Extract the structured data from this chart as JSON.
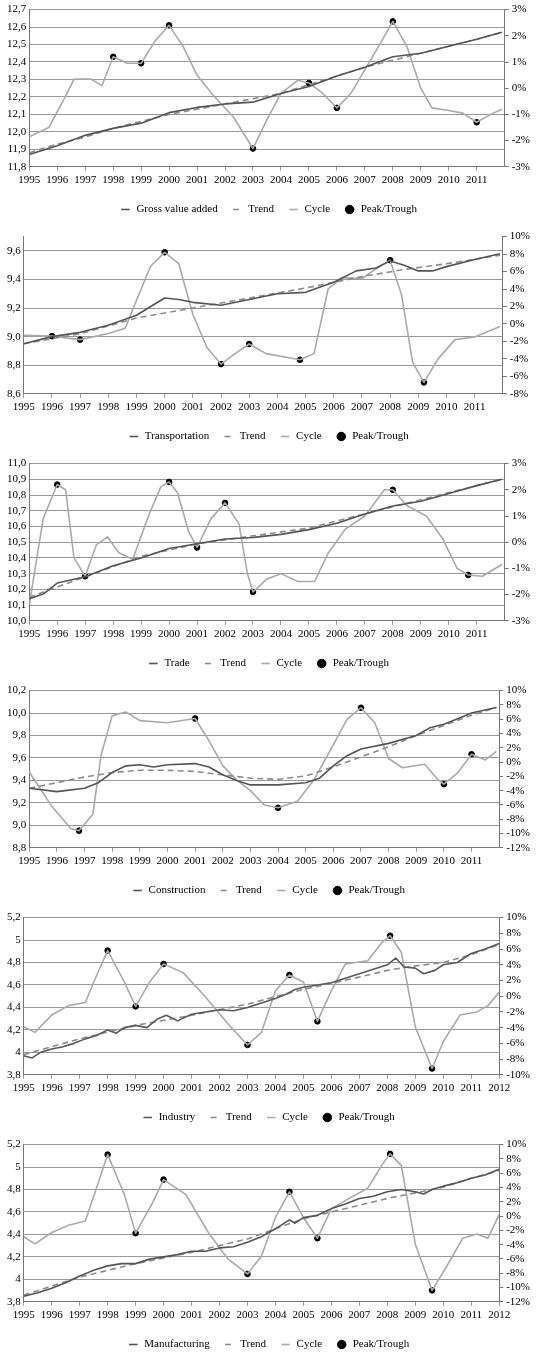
{
  "chart_data": [
    {
      "type": "line",
      "xlim": [
        1995,
        2012
      ],
      "xticks": [
        1995,
        1996,
        1997,
        1998,
        1999,
        2000,
        2001,
        2002,
        2003,
        2004,
        2005,
        2006,
        2007,
        2008,
        2009,
        2010,
        2011
      ],
      "ylim": [
        11.8,
        12.7
      ],
      "yticks": [
        {
          "value": 11.8,
          "label": "11,8"
        },
        {
          "value": 11.9,
          "label": "11,9"
        },
        {
          "value": 12.0,
          "label": "12,0"
        },
        {
          "value": 12.1,
          "label": "12,1"
        },
        {
          "value": 12.2,
          "label": "12,2"
        },
        {
          "value": 12.3,
          "label": "12,3"
        },
        {
          "value": 12.4,
          "label": "12,4"
        },
        {
          "value": 12.5,
          "label": "12,5"
        },
        {
          "value": 12.6,
          "label": "12,6"
        },
        {
          "value": 12.7,
          "label": "12,7"
        }
      ],
      "y2lim": [
        -3,
        3
      ],
      "y2ticks": [
        {
          "value": -3,
          "label": "-3%"
        },
        {
          "value": -2,
          "label": "-2%"
        },
        {
          "value": -1,
          "label": "-1%"
        },
        {
          "value": 0,
          "label": "0%"
        },
        {
          "value": 1,
          "label": "1%"
        },
        {
          "value": 2,
          "label": "2%"
        },
        {
          "value": 3,
          "label": "3%"
        }
      ],
      "grid": "y",
      "legend": "bottom",
      "series": [
        {
          "name": "Gross value added",
          "type": "line",
          "color": "#555555",
          "x": [
            1995,
            1996,
            1997,
            1998,
            1999,
            2000,
            2001,
            2002,
            2003,
            2004,
            2005,
            2006,
            2007,
            2008,
            2009,
            2010,
            2011,
            2011.9
          ],
          "values": [
            11.87,
            11.92,
            11.98,
            12.02,
            12.05,
            12.11,
            12.14,
            12.16,
            12.17,
            12.22,
            12.26,
            12.32,
            12.37,
            12.43,
            12.45,
            12.49,
            12.53,
            12.57
          ]
        },
        {
          "name": "Trend",
          "type": "line",
          "line_style": "dashed",
          "color": "#8c8c8c",
          "x": [
            1995,
            1996,
            1997,
            1998,
            1999,
            2000,
            2001,
            2002,
            2003,
            2004,
            2005,
            2006,
            2007,
            2008,
            2009,
            2010,
            2011,
            2011.9
          ],
          "values": [
            11.88,
            11.93,
            11.97,
            12.02,
            12.06,
            12.1,
            12.13,
            12.16,
            12.19,
            12.22,
            12.27,
            12.32,
            12.37,
            12.41,
            12.45,
            12.49,
            12.53,
            12.57
          ]
        },
        {
          "name": "Cycle",
          "type": "line",
          "axis": "y2",
          "color": "#aaaaaa",
          "x": [
            1995,
            1995.7,
            1996.3,
            1996.6,
            1997.2,
            1997.6,
            1998,
            1998.5,
            1999,
            1999.5,
            2000,
            2000.5,
            2001,
            2001.6,
            2002.3,
            2003,
            2003.5,
            2004,
            2004.6,
            2005,
            2005.5,
            2006,
            2006.5,
            2007,
            2007.6,
            2008,
            2008.5,
            2009,
            2009.4,
            2010,
            2010.5,
            2011,
            2011.5,
            2011.9
          ],
          "values": [
            -1.85,
            -1.5,
            -0.3,
            0.35,
            0.35,
            0.1,
            1.2,
            0.95,
            0.95,
            1.8,
            2.4,
            1.6,
            0.5,
            -0.3,
            -1.1,
            -2.3,
            -1.2,
            -0.2,
            0.3,
            0.2,
            -0.2,
            -0.75,
            -0.2,
            0.7,
            1.8,
            2.55,
            1.6,
            0.0,
            -0.75,
            -0.85,
            -0.95,
            -1.3,
            -1.0,
            -0.8
          ]
        },
        {
          "name": "Peak/Trough",
          "type": "scatter",
          "axis": "y2",
          "marker": "circle",
          "color": "#000000",
          "x": [
            1998,
            1999,
            2000,
            2003,
            2005,
            2006,
            2008,
            2011
          ],
          "values": [
            1.2,
            0.95,
            2.4,
            -2.3,
            0.2,
            -0.75,
            2.55,
            -1.3
          ]
        }
      ]
    },
    {
      "type": "line",
      "xlim": [
        1995,
        2012
      ],
      "xticks": [
        1995,
        1996,
        1997,
        1998,
        1999,
        2000,
        2001,
        2002,
        2003,
        2004,
        2005,
        2006,
        2007,
        2008,
        2009,
        2010,
        2011
      ],
      "ylim": [
        8.6,
        9.7
      ],
      "yticks": [
        {
          "value": 8.6,
          "label": "8,6"
        },
        {
          "value": 8.8,
          "label": "8,8"
        },
        {
          "value": 9.0,
          "label": "9,0"
        },
        {
          "value": 9.2,
          "label": "9,2"
        },
        {
          "value": 9.4,
          "label": "9,4"
        },
        {
          "value": 9.6,
          "label": "9,6"
        }
      ],
      "y2lim": [
        -8,
        10
      ],
      "y2ticks": [
        {
          "value": -8,
          "label": "-8%"
        },
        {
          "value": -6,
          "label": "-6%"
        },
        {
          "value": -4,
          "label": "-4%"
        },
        {
          "value": -2,
          "label": "-2%"
        },
        {
          "value": 0,
          "label": "0%"
        },
        {
          "value": 2,
          "label": "2%"
        },
        {
          "value": 4,
          "label": "4%"
        },
        {
          "value": 6,
          "label": "6%"
        },
        {
          "value": 8,
          "label": "8%"
        },
        {
          "value": 10,
          "label": "10%"
        }
      ],
      "grid": "y",
      "legend": "bottom",
      "series": [
        {
          "name": "Transportation",
          "type": "line",
          "color": "#555555",
          "x": [
            1995,
            1996,
            1997,
            1998,
            1999,
            2000,
            2000.5,
            2001,
            2002,
            2003,
            2004,
            2005,
            2006,
            2006.8,
            2007.5,
            2008,
            2008.5,
            2009,
            2009.5,
            2010,
            2011,
            2011.9
          ],
          "values": [
            8.95,
            9.0,
            9.03,
            9.08,
            9.15,
            9.27,
            9.26,
            9.24,
            9.22,
            9.26,
            9.3,
            9.31,
            9.38,
            9.46,
            9.48,
            9.53,
            9.5,
            9.46,
            9.46,
            9.49,
            9.54,
            9.58
          ]
        },
        {
          "name": "Trend",
          "type": "line",
          "line_style": "dashed",
          "color": "#8c8c8c",
          "x": [
            1995,
            1997,
            1999,
            2001,
            2003,
            2005,
            2007,
            2008.5,
            2010,
            2011.9
          ],
          "values": [
            8.95,
            9.02,
            9.13,
            9.2,
            9.27,
            9.34,
            9.42,
            9.47,
            9.51,
            9.57
          ]
        },
        {
          "name": "Cycle",
          "type": "line",
          "axis": "y2",
          "color": "#aaaaaa",
          "x": [
            1995,
            1996,
            1997,
            1998,
            1998.6,
            1999,
            1999.5,
            2000,
            2000.5,
            2001,
            2001.5,
            2002,
            2002.5,
            2003,
            2003.6,
            2004.8,
            2005.3,
            2005.8,
            2006.3,
            2007,
            2007.5,
            2008,
            2008.4,
            2008.8,
            2009.2,
            2009.7,
            2010.3,
            2011,
            2011.9
          ],
          "values": [
            -1.3,
            -1.4,
            -1.8,
            -1.1,
            -0.5,
            2.7,
            6.6,
            8.2,
            6.9,
            1.1,
            -2.7,
            -4.6,
            -3.4,
            -2.3,
            -3.4,
            -4.1,
            -3.4,
            4.0,
            5.3,
            5.2,
            6.3,
            7.3,
            3.4,
            -4.4,
            -6.7,
            -4.0,
            -1.8,
            -1.5,
            -0.3
          ]
        },
        {
          "name": "Peak/Trough",
          "type": "scatter",
          "axis": "y2",
          "marker": "circle",
          "color": "#000000",
          "x": [
            1996,
            1997,
            2000,
            2002,
            2003,
            2004.8,
            2008,
            2009.2
          ],
          "values": [
            -1.4,
            -1.8,
            8.2,
            -4.6,
            -2.3,
            -4.1,
            7.3,
            -6.7
          ]
        }
      ]
    },
    {
      "type": "line",
      "xlim": [
        1995,
        2012
      ],
      "xticks": [
        1995,
        1996,
        1997,
        1998,
        1999,
        2000,
        2001,
        2002,
        2003,
        2004,
        2005,
        2006,
        2007,
        2008,
        2009,
        2010,
        2011
      ],
      "ylim": [
        10.0,
        11.0
      ],
      "yticks": [
        {
          "value": 10.0,
          "label": "10,0"
        },
        {
          "value": 10.1,
          "label": "10,1"
        },
        {
          "value": 10.2,
          "label": "10,2"
        },
        {
          "value": 10.3,
          "label": "10,3"
        },
        {
          "value": 10.4,
          "label": "10,4"
        },
        {
          "value": 10.5,
          "label": "10,5"
        },
        {
          "value": 10.6,
          "label": "10,6"
        },
        {
          "value": 10.7,
          "label": "10,7"
        },
        {
          "value": 10.8,
          "label": "10,8"
        },
        {
          "value": 10.9,
          "label": "10,9"
        },
        {
          "value": 11.0,
          "label": "11,0"
        }
      ],
      "y2lim": [
        -3,
        3
      ],
      "y2ticks": [
        {
          "value": -3,
          "label": "-3%"
        },
        {
          "value": -2,
          "label": "-2%"
        },
        {
          "value": -1,
          "label": "-1%"
        },
        {
          "value": 0,
          "label": "0%"
        },
        {
          "value": 1,
          "label": "1%"
        },
        {
          "value": 2,
          "label": "2%"
        },
        {
          "value": 3,
          "label": "3%"
        }
      ],
      "grid": "y",
      "legend": "bottom",
      "series": [
        {
          "name": "Trade",
          "type": "line",
          "color": "#555555",
          "x": [
            1995,
            1995.5,
            1996,
            1997,
            1998,
            1999,
            2000,
            2001,
            2002,
            2003,
            2004,
            2005,
            2006,
            2007,
            2008,
            2009,
            2010,
            2011,
            2011.9
          ],
          "values": [
            10.14,
            10.17,
            10.24,
            10.28,
            10.35,
            10.4,
            10.46,
            10.49,
            10.52,
            10.53,
            10.55,
            10.58,
            10.62,
            10.68,
            10.73,
            10.76,
            10.81,
            10.86,
            10.9
          ]
        },
        {
          "name": "Trend",
          "type": "line",
          "line_style": "dashed",
          "color": "#8c8c8c",
          "x": [
            1995,
            1997,
            1999,
            2001,
            2003,
            2005,
            2007,
            2009,
            2011,
            2011.9
          ],
          "values": [
            10.15,
            10.28,
            10.41,
            10.49,
            10.54,
            10.59,
            10.68,
            10.77,
            10.86,
            10.9
          ]
        },
        {
          "name": "Cycle",
          "type": "line",
          "axis": "y2",
          "color": "#aaaaaa",
          "x": [
            1995,
            1995.5,
            1996,
            1996.3,
            1996.6,
            1997,
            1997.4,
            1997.8,
            1998.2,
            1998.7,
            1999.3,
            1999.7,
            2000,
            2000.3,
            2000.7,
            2001,
            2001.5,
            2002,
            2002.5,
            2002.8,
            2003,
            2003.5,
            2004,
            2004.6,
            2005.2,
            2005.7,
            2006.3,
            2007,
            2007.7,
            2008,
            2008.5,
            2009.2,
            2009.8,
            2010.3,
            2010.7,
            2011.2,
            2011.9
          ],
          "values": [
            -2.4,
            0.9,
            2.2,
            2.0,
            -0.6,
            -1.3,
            -0.1,
            0.2,
            -0.4,
            -0.65,
            1.1,
            2.1,
            2.3,
            1.9,
            0.4,
            -0.2,
            0.9,
            1.5,
            0.7,
            -1.2,
            -1.9,
            -1.4,
            -1.2,
            -1.5,
            -1.5,
            -0.4,
            0.5,
            1.0,
            2.0,
            2.0,
            1.4,
            1.0,
            0.1,
            -1.0,
            -1.25,
            -1.3,
            -0.85
          ]
        },
        {
          "name": "Peak/Trough",
          "type": "scatter",
          "axis": "y2",
          "marker": "circle",
          "color": "#000000",
          "x": [
            1996,
            1997,
            2000,
            2001,
            2002,
            2003,
            2008,
            2010.7
          ],
          "values": [
            2.2,
            -1.3,
            2.3,
            -0.2,
            1.5,
            -1.9,
            2.0,
            -1.25
          ]
        }
      ]
    },
    {
      "type": "line",
      "xlim": [
        1995,
        2012
      ],
      "xticks": [
        1995,
        1996,
        1997,
        1998,
        1999,
        2000,
        2001,
        2002,
        2003,
        2004,
        2005,
        2006,
        2007,
        2008,
        2009,
        2010,
        2011
      ],
      "ylim": [
        8.8,
        10.2
      ],
      "yticks": [
        {
          "value": 8.8,
          "label": "8,8"
        },
        {
          "value": 9.0,
          "label": "9,0"
        },
        {
          "value": 9.2,
          "label": "9,2"
        },
        {
          "value": 9.4,
          "label": "9,4"
        },
        {
          "value": 9.6,
          "label": "9,6"
        },
        {
          "value": 9.8,
          "label": "9,8"
        },
        {
          "value": 10.0,
          "label": "10,0"
        },
        {
          "value": 10.2,
          "label": "10,2"
        }
      ],
      "y2lim": [
        -12,
        10
      ],
      "y2ticks": [
        {
          "value": -12,
          "label": "-12%"
        },
        {
          "value": -10,
          "label": "-10%"
        },
        {
          "value": -8,
          "label": "-8%"
        },
        {
          "value": -6,
          "label": "-6%"
        },
        {
          "value": -4,
          "label": "-4%"
        },
        {
          "value": -2,
          "label": "-2%"
        },
        {
          "value": 0,
          "label": "0%"
        },
        {
          "value": 2,
          "label": "2%"
        },
        {
          "value": 4,
          "label": "4%"
        },
        {
          "value": 6,
          "label": "6%"
        },
        {
          "value": 8,
          "label": "8%"
        },
        {
          "value": 10,
          "label": "10%"
        }
      ],
      "grid": "y",
      "legend": "bottom",
      "series": [
        {
          "name": "Construction",
          "type": "line",
          "color": "#555555",
          "x": [
            1995,
            1996,
            1997,
            1997.5,
            1998,
            1998.5,
            1999,
            1999.5,
            2000,
            2001,
            2001.5,
            2002,
            2002.5,
            2003,
            2004,
            2005,
            2005.5,
            2006,
            2006.5,
            2007,
            2008,
            2009,
            2009.5,
            2010,
            2010.5,
            2011,
            2011.9
          ],
          "values": [
            9.33,
            9.3,
            9.33,
            9.38,
            9.47,
            9.53,
            9.54,
            9.52,
            9.54,
            9.55,
            9.52,
            9.45,
            9.4,
            9.36,
            9.36,
            9.38,
            9.42,
            9.53,
            9.62,
            9.68,
            9.73,
            9.8,
            9.87,
            9.9,
            9.95,
            10.0,
            10.05
          ]
        },
        {
          "name": "Trend",
          "type": "line",
          "line_style": "dashed",
          "color": "#8c8c8c",
          "x": [
            1995,
            1996,
            1997,
            1998,
            1999,
            2000,
            2001,
            2002,
            2003,
            2004,
            2005,
            2006,
            2007,
            2008,
            2009,
            2010,
            2011,
            2011.9
          ],
          "values": [
            9.33,
            9.38,
            9.43,
            9.47,
            9.49,
            9.49,
            9.48,
            9.45,
            9.42,
            9.41,
            9.44,
            9.52,
            9.61,
            9.7,
            9.8,
            9.89,
            9.98,
            10.05
          ]
        },
        {
          "name": "Cycle",
          "type": "line",
          "axis": "y2",
          "color": "#aaaaaa",
          "x": [
            1995,
            1995.8,
            1996.5,
            1996.8,
            1997.3,
            1997.6,
            1998,
            1998.5,
            1999,
            2000,
            2001,
            2001.5,
            2002,
            2002.5,
            2003,
            2003.5,
            2004,
            2004.7,
            2005.3,
            2005.8,
            2006.5,
            2007,
            2007.5,
            2008,
            2008.5,
            2009.3,
            2009.8,
            2010,
            2010.5,
            2011,
            2011.5,
            2011.9
          ],
          "values": [
            -1.4,
            -6.1,
            -9.3,
            -9.6,
            -7.3,
            1.0,
            6.5,
            7.0,
            5.8,
            5.5,
            6.1,
            3.0,
            -0.5,
            -2.5,
            -4.0,
            -6.0,
            -6.4,
            -5.5,
            -2.5,
            1.0,
            6.0,
            7.6,
            5.5,
            0.5,
            -0.8,
            -0.3,
            -2.5,
            -3.1,
            -1.5,
            1.1,
            0.3,
            1.5
          ]
        },
        {
          "name": "Peak/Trough",
          "type": "scatter",
          "axis": "y2",
          "marker": "circle",
          "color": "#000000",
          "x": [
            1996.8,
            2001,
            2004,
            2007,
            2010,
            2011
          ],
          "values": [
            -9.6,
            6.1,
            -6.4,
            7.6,
            -3.1,
            1.1
          ]
        }
      ]
    },
    {
      "type": "line",
      "xlim": [
        1995,
        2012
      ],
      "xticks": [
        1995,
        1996,
        1997,
        1998,
        1999,
        2000,
        2001,
        2002,
        2003,
        2004,
        2005,
        2006,
        2007,
        2008,
        2009,
        2010,
        2011,
        2012
      ],
      "ylim": [
        3.8,
        5.2
      ],
      "yticks": [
        {
          "value": 3.8,
          "label": "3,8"
        },
        {
          "value": 4,
          "label": "4"
        },
        {
          "value": 4.2,
          "label": "4,2"
        },
        {
          "value": 4.4,
          "label": "4,4"
        },
        {
          "value": 4.6,
          "label": "4,6"
        },
        {
          "value": 4.8,
          "label": "4,8"
        },
        {
          "value": 5,
          "label": "5"
        },
        {
          "value": 5.2,
          "label": "5,2"
        }
      ],
      "y2lim": [
        -10,
        10
      ],
      "y2ticks": [
        {
          "value": -10,
          "label": "-10%"
        },
        {
          "value": -8,
          "label": "-8%"
        },
        {
          "value": -6,
          "label": "-6%"
        },
        {
          "value": -4,
          "label": "-4%"
        },
        {
          "value": -2,
          "label": "-2%"
        },
        {
          "value": 0,
          "label": "0%"
        },
        {
          "value": 2,
          "label": "2%"
        },
        {
          "value": 4,
          "label": "4%"
        },
        {
          "value": 6,
          "label": "6%"
        },
        {
          "value": 8,
          "label": "8%"
        },
        {
          "value": 10,
          "label": "10%"
        }
      ],
      "grid": "y",
      "legend": "bottom",
      "series": [
        {
          "name": "Industry",
          "type": "line",
          "color": "#5a5a5a",
          "x": [
            1995,
            1995.3,
            1995.6,
            1996,
            1996.4,
            1996.8,
            1997.2,
            1997.6,
            1998,
            1998.3,
            1998.6,
            1999,
            1999.4,
            1999.8,
            2000.1,
            2000.5,
            2001,
            2001.5,
            2002,
            2002.5,
            2003,
            2003.5,
            2004,
            2004.4,
            2004.7,
            2005,
            2005.5,
            2006,
            2006.5,
            2007,
            2007.5,
            2008,
            2008.3,
            2008.6,
            2009,
            2009.3,
            2009.7,
            2010,
            2010.5,
            2011,
            2011.5,
            2012
          ],
          "values": [
            3.97,
            3.95,
            4.0,
            4.03,
            4.05,
            4.08,
            4.12,
            4.15,
            4.2,
            4.17,
            4.22,
            4.24,
            4.22,
            4.3,
            4.33,
            4.28,
            4.34,
            4.36,
            4.38,
            4.37,
            4.4,
            4.44,
            4.48,
            4.52,
            4.56,
            4.58,
            4.6,
            4.62,
            4.66,
            4.7,
            4.74,
            4.78,
            4.84,
            4.76,
            4.75,
            4.7,
            4.73,
            4.78,
            4.8,
            4.88,
            4.92,
            4.97
          ]
        },
        {
          "name": "Trend",
          "type": "line",
          "line_style": "dashed",
          "color": "#8c8c8c",
          "x": [
            1995,
            1997,
            1999,
            2001,
            2003,
            2005,
            2007,
            2008,
            2009,
            2010,
            2011,
            2012
          ],
          "values": [
            3.98,
            4.12,
            4.24,
            4.33,
            4.43,
            4.56,
            4.67,
            4.73,
            4.77,
            4.8,
            4.87,
            4.96
          ]
        },
        {
          "name": "Cycle",
          "type": "line",
          "axis": "y2",
          "color": "#aaaaaa",
          "x": [
            1995,
            1995.4,
            1996,
            1996.6,
            1997.2,
            1997.6,
            1998,
            1998.6,
            1999,
            1999.5,
            2000,
            2000.7,
            2001.5,
            2002.3,
            2003,
            2003.5,
            2004,
            2004.5,
            2005,
            2005.5,
            2006,
            2006.5,
            2007.3,
            2007.8,
            2008.1,
            2008.5,
            2009,
            2009.6,
            2010,
            2010.6,
            2011.2,
            2011.6,
            2012
          ],
          "values": [
            -3.9,
            -4.6,
            -2.4,
            -1.2,
            -0.8,
            2.6,
            5.8,
            1.8,
            -1.3,
            1.8,
            4.1,
            3.0,
            -0.1,
            -3.5,
            -6.2,
            -4.6,
            0.7,
            2.7,
            1.8,
            -3.2,
            0.7,
            4.1,
            4.5,
            6.8,
            7.7,
            5.6,
            -3.9,
            -9.2,
            -5.8,
            -2.4,
            -2.0,
            -1.2,
            0.5
          ]
        },
        {
          "name": "Peak/Trough",
          "type": "scatter",
          "axis": "y2",
          "marker": "circle",
          "color": "#000000",
          "x": [
            1998,
            1999,
            2000,
            2003,
            2004.5,
            2005.5,
            2008.1,
            2009.6
          ],
          "values": [
            5.8,
            -1.3,
            4.1,
            -6.2,
            2.7,
            -3.2,
            7.7,
            -9.2
          ]
        }
      ]
    },
    {
      "type": "line",
      "xlim": [
        1995,
        2012
      ],
      "xticks": [
        1995,
        1996,
        1997,
        1998,
        1999,
        2000,
        2001,
        2002,
        2003,
        2004,
        2005,
        2006,
        2007,
        2008,
        2009,
        2010,
        2011,
        2012
      ],
      "ylim": [
        3.8,
        5.2
      ],
      "yticks": [
        {
          "value": 3.8,
          "label": "3,8"
        },
        {
          "value": 4,
          "label": "4"
        },
        {
          "value": 4.2,
          "label": "4,2"
        },
        {
          "value": 4.4,
          "label": "4,4"
        },
        {
          "value": 4.6,
          "label": "4,6"
        },
        {
          "value": 4.8,
          "label": "4,8"
        },
        {
          "value": 5,
          "label": "5"
        },
        {
          "value": 5.2,
          "label": "5,2"
        }
      ],
      "y2lim": [
        -12,
        10
      ],
      "y2ticks": [
        {
          "value": -12,
          "label": "-12%"
        },
        {
          "value": -10,
          "label": "-10%"
        },
        {
          "value": -8,
          "label": "-8%"
        },
        {
          "value": -6,
          "label": "-6%"
        },
        {
          "value": -4,
          "label": "-4%"
        },
        {
          "value": -2,
          "label": "-2%"
        },
        {
          "value": 0,
          "label": "0%"
        },
        {
          "value": 2,
          "label": "2%"
        },
        {
          "value": 4,
          "label": "4%"
        },
        {
          "value": 6,
          "label": "6%"
        },
        {
          "value": 8,
          "label": "8%"
        },
        {
          "value": 10,
          "label": "10%"
        }
      ],
      "grid": "y",
      "legend": "bottom",
      "series": [
        {
          "name": "Manufacturing",
          "type": "line",
          "color": "#555555",
          "x": [
            1995,
            1995.5,
            1996,
            1996.5,
            1997,
            1997.5,
            1998,
            1998.5,
            1999,
            1999.5,
            2000,
            2000.5,
            2001,
            2001.5,
            2002,
            2002.5,
            2003,
            2003.5,
            2004,
            2004.5,
            2004.7,
            2005,
            2005.5,
            2006,
            2006.5,
            2007,
            2007.5,
            2008,
            2008.5,
            2009,
            2009.3,
            2009.6,
            2010,
            2010.5,
            2011,
            2011.5,
            2012
          ],
          "values": [
            3.85,
            3.88,
            3.92,
            3.97,
            4.03,
            4.08,
            4.12,
            4.14,
            4.14,
            4.18,
            4.2,
            4.22,
            4.25,
            4.25,
            4.28,
            4.29,
            4.33,
            4.38,
            4.45,
            4.53,
            4.5,
            4.55,
            4.57,
            4.63,
            4.67,
            4.72,
            4.74,
            4.78,
            4.8,
            4.78,
            4.76,
            4.8,
            4.83,
            4.86,
            4.9,
            4.93,
            4.98
          ]
        },
        {
          "name": "Trend",
          "type": "line",
          "line_style": "dashed",
          "color": "#8c8c8c",
          "x": [
            1995,
            1997,
            1999,
            2001,
            2003,
            2005,
            2007,
            2008,
            2009,
            2010,
            2011,
            2012
          ],
          "values": [
            3.86,
            4.02,
            4.14,
            4.24,
            4.36,
            4.54,
            4.66,
            4.72,
            4.77,
            4.82,
            4.9,
            4.97
          ]
        },
        {
          "name": "Cycle",
          "type": "line",
          "axis": "y2",
          "color": "#aaaaaa",
          "x": [
            1995,
            1995.4,
            1996,
            1996.6,
            1997.2,
            1997.6,
            1998,
            1998.6,
            1999,
            1999.6,
            2000,
            2000.8,
            2001.6,
            2002.3,
            2003,
            2003.5,
            2004,
            2004.5,
            2005,
            2005.5,
            2006,
            2006.6,
            2007.3,
            2007.8,
            2008.1,
            2008.5,
            2009,
            2009.6,
            2010.1,
            2010.7,
            2011.2,
            2011.6,
            2012
          ],
          "values": [
            -2.9,
            -3.9,
            -2.3,
            -1.3,
            -0.7,
            3.9,
            8.6,
            3.0,
            -2.4,
            1.8,
            5.1,
            3.0,
            -2.3,
            -6.0,
            -8.1,
            -5.6,
            -0.2,
            3.4,
            -0.2,
            -3.1,
            1.0,
            2.4,
            3.9,
            7.1,
            8.7,
            7.1,
            -3.9,
            -10.4,
            -7.2,
            -3.1,
            -2.5,
            -3.1,
            0.2
          ]
        },
        {
          "name": "Peak/Trough",
          "type": "scatter",
          "axis": "y2",
          "marker": "circle",
          "color": "#000000",
          "x": [
            1998,
            1999,
            2000,
            2003,
            2004.5,
            2005.5,
            2008.1,
            2009.6
          ],
          "values": [
            8.6,
            -2.4,
            5.1,
            -8.1,
            3.4,
            -3.1,
            8.7,
            -10.4
          ]
        }
      ]
    }
  ]
}
